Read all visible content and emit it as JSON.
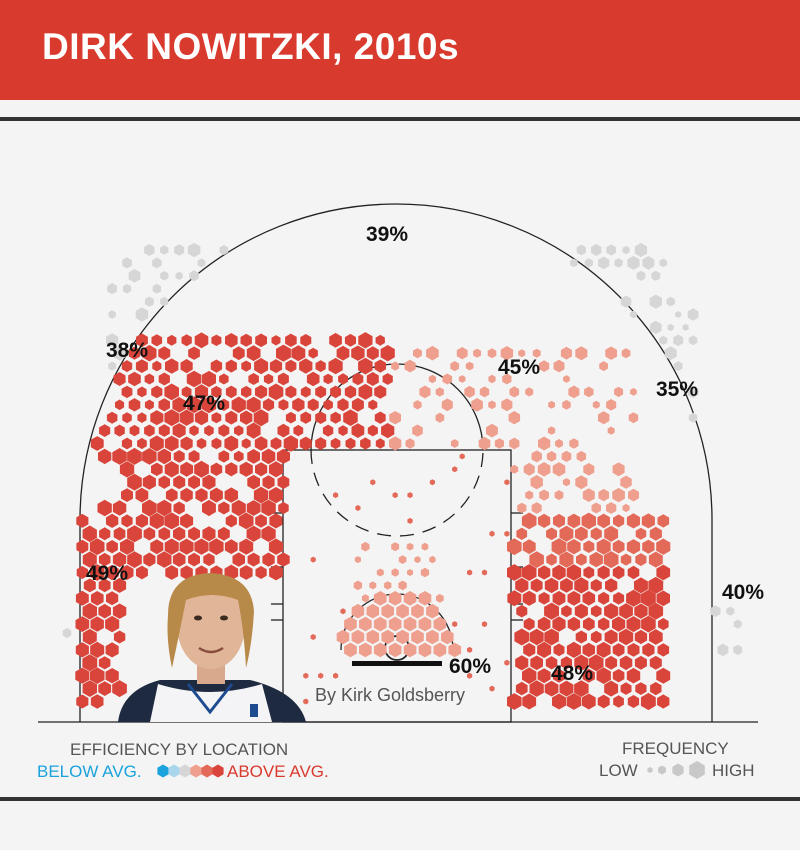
{
  "header": {
    "title": "DIRK NOWITZKI, 2010s"
  },
  "credit": "By Kirk Goldsberry",
  "legend": {
    "efficiency_title": "EFFICIENCY BY LOCATION",
    "below_label": "BELOW AVG.",
    "above_label": "ABOVE AVG.",
    "frequency_title": "FREQUENCY",
    "low_label": "LOW",
    "high_label": "HIGH"
  },
  "colors": {
    "header": "#d93a2e",
    "above_strong": "#d9453a",
    "above_mid": "#e36a58",
    "above_light": "#ee9f8e",
    "average": "#d6d6d6",
    "below_light": "#a9d6ec",
    "below_strong": "#1aa3dc"
  },
  "chart_data": {
    "type": "heatmap",
    "title": "DIRK NOWITZKI, 2010s",
    "zones": [
      {
        "zone": "above the break 3 (top)",
        "fg_pct": "39%"
      },
      {
        "zone": "left wing 3",
        "fg_pct": "38%"
      },
      {
        "zone": "right wing 3",
        "fg_pct": "35%"
      },
      {
        "zone": "left elbow mid-range",
        "fg_pct": "47%"
      },
      {
        "zone": "right elbow mid-range",
        "fg_pct": "45%"
      },
      {
        "zone": "left baseline mid-range",
        "fg_pct": "49%"
      },
      {
        "zone": "right baseline mid-range",
        "fg_pct": "48%"
      },
      {
        "zone": "right corner 3",
        "fg_pct": "40%"
      },
      {
        "zone": "restricted area",
        "fg_pct": "60%"
      }
    ],
    "legend_placement": "bottom"
  }
}
